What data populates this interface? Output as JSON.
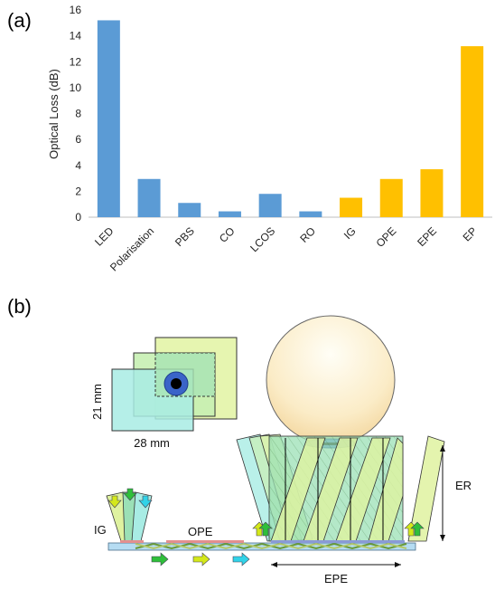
{
  "panel_a_label": "(a)",
  "panel_b_label": "(b)",
  "chart_data": {
    "type": "bar",
    "title": "",
    "xlabel": "",
    "ylabel": "Optical Loss (dB)",
    "ylim": [
      0,
      16
    ],
    "yticks": [
      0,
      2,
      4,
      6,
      8,
      10,
      12,
      14,
      16
    ],
    "categories": [
      "LED",
      "Polarisation",
      "PBS",
      "CO",
      "LCOS",
      "RO",
      "IG",
      "OPE",
      "EPE",
      "EP"
    ],
    "values": [
      15.2,
      2.95,
      1.1,
      0.45,
      1.8,
      0.45,
      1.5,
      2.95,
      3.7,
      13.2
    ],
    "bar_colors": [
      "#5b9bd5",
      "#5b9bd5",
      "#5b9bd5",
      "#5b9bd5",
      "#5b9bd5",
      "#5b9bd5",
      "#ffc000",
      "#ffc000",
      "#ffc000",
      "#ffc000"
    ],
    "grid": false
  },
  "diagram": {
    "dim_21": "21 mm",
    "dim_28": "28 mm",
    "label_ig": "IG",
    "label_ope": "OPE",
    "label_epe": "EPE",
    "label_er": "ER"
  }
}
